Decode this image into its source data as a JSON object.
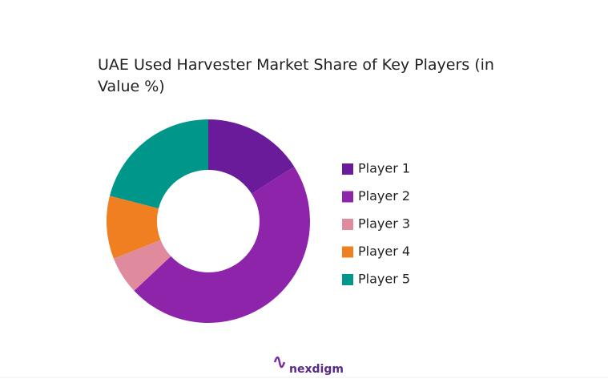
{
  "chart_data": {
    "type": "donut",
    "title": "UAE Used Harvester Market Share of Key Players (in Value %)",
    "categories": [
      "Player 1",
      "Player 2",
      "Player 3",
      "Player 4",
      "Player 5"
    ],
    "values": [
      16,
      47,
      6,
      10,
      21
    ],
    "colors": [
      "#6a1b9a",
      "#8e24aa",
      "#e08a9e",
      "#f07f22",
      "#00968a"
    ],
    "legend": "right"
  },
  "brand": "nexdigm"
}
